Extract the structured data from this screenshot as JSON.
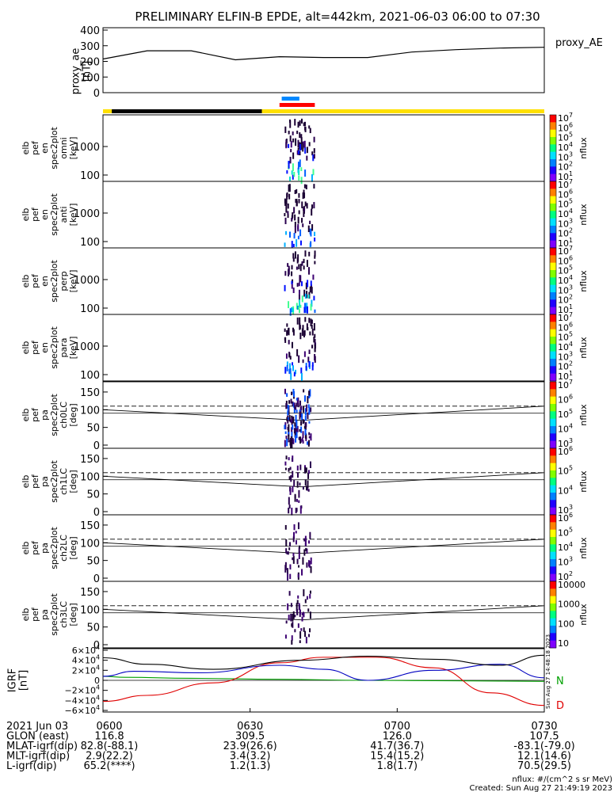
{
  "title": "PRELIMINARY ELFIN-B EPDE, alt=442km, 2021-06-03 06:00 to 07:30",
  "chart_data": [
    {
      "type": "line",
      "panel": "proxy_ae",
      "ylabel_lines": [
        "proxy_ae",
        "[nT]"
      ],
      "legend": "proxy_AE",
      "ylim": [
        0,
        400
      ],
      "yticks": [
        "400",
        "300",
        "200",
        "100",
        "0"
      ],
      "x": [
        0,
        0.1,
        0.2,
        0.3,
        0.4,
        0.5,
        0.6,
        0.7,
        0.8,
        0.9,
        1.0
      ],
      "values": [
        215,
        268,
        268,
        210,
        230,
        225,
        225,
        260,
        275,
        285,
        290
      ]
    },
    {
      "type": "heatmap",
      "panels": [
        {
          "name": "elb pef en spec2plot omni",
          "ylabel_lines": [
            "elb",
            "pef",
            "en",
            "spec2plot",
            "omni",
            "[keV]"
          ],
          "cbar": [
            "10^7",
            "10^6",
            "10^5",
            "10^4",
            "10^3",
            "10^2",
            "10^1"
          ],
          "cbar_label": "nflux",
          "yticks": [
            "1000",
            "100"
          ]
        },
        {
          "name": "elb pef en spec2plot anti",
          "ylabel_lines": [
            "elb",
            "pef",
            "en",
            "spec2plot",
            "anti",
            "[keV]"
          ],
          "cbar": [
            "10^7",
            "10^6",
            "10^5",
            "10^4",
            "10^3",
            "10^2",
            "10^1"
          ],
          "cbar_label": "nflux",
          "yticks": [
            "1000",
            "100"
          ]
        },
        {
          "name": "elb pef en spec2plot perp",
          "ylabel_lines": [
            "elb",
            "pef",
            "en",
            "spec2plot",
            "perp",
            "[keV]"
          ],
          "cbar": [
            "10^7",
            "10^6",
            "10^5",
            "10^4",
            "10^3",
            "10^2",
            "10^1"
          ],
          "cbar_label": "nflux",
          "yticks": [
            "1000",
            "100"
          ]
        },
        {
          "name": "elb pef en spec2plot para",
          "ylabel_lines": [
            "elb",
            "pef",
            "en",
            "spec2plot",
            "para",
            "[keV]"
          ],
          "cbar": [
            "10^7",
            "10^6",
            "10^5",
            "10^4",
            "10^3",
            "10^2",
            "10^1"
          ],
          "cbar_label": "nflux",
          "yticks": [
            "1000",
            "100"
          ]
        },
        {
          "name": "elb pef pa spec2plot ch0LC",
          "ylabel_lines": [
            "elb",
            "pef",
            "pa",
            "spec2plot",
            "ch0LC",
            "[deg]"
          ],
          "cbar": [
            "10^7",
            "10^6",
            "10^5",
            "10^4",
            "10^3"
          ],
          "cbar_label": "nflux",
          "yticks": [
            "150",
            "100",
            "50",
            "0"
          ]
        },
        {
          "name": "elb pef pa spec2plot ch1LC",
          "ylabel_lines": [
            "elb",
            "pef",
            "pa",
            "spec2plot",
            "ch1LC",
            "[deg]"
          ],
          "cbar": [
            "10^6",
            "10^5",
            "10^4",
            "10^3"
          ],
          "cbar_label": "nflux",
          "yticks": [
            "150",
            "100",
            "50",
            "0"
          ]
        },
        {
          "name": "elb pef pa spec2plot ch2LC",
          "ylabel_lines": [
            "elb",
            "pef",
            "pa",
            "spec2plot",
            "ch2LC",
            "[deg]"
          ],
          "cbar": [
            "10^6",
            "10^5",
            "10^4",
            "10^3",
            "10^2"
          ],
          "cbar_label": "nflux",
          "yticks": [
            "150",
            "100",
            "50",
            "0"
          ]
        },
        {
          "name": "elb pef pa spec2plot ch3LC",
          "ylabel_lines": [
            "elb",
            "pef",
            "pa",
            "spec2plot",
            "ch3LC",
            "[deg]"
          ],
          "cbar": [
            "10000",
            "1000",
            "100",
            "10"
          ],
          "cbar_label": "nflux",
          "yticks": [
            "150",
            "100",
            "50",
            "0"
          ]
        }
      ]
    },
    {
      "type": "line",
      "panel": "IGRF",
      "ylabel_lines": [
        "IGRF",
        "[nT]"
      ],
      "ylim": [
        -60000,
        60000
      ],
      "yticks": [
        "6×10^4",
        "4×10^4",
        "2×10^4",
        "0",
        "−2×10^4",
        "−4×10^4",
        "−6×10^4"
      ],
      "series": [
        {
          "name": "N",
          "color": "#00a000",
          "x": [
            0,
            0.05,
            0.2,
            0.4,
            0.6,
            0.8,
            1.0
          ],
          "values": [
            8000,
            6000,
            4000,
            2000,
            0,
            -1000,
            -2000
          ]
        },
        {
          "name": "D",
          "color": "#e00000",
          "x": [
            0,
            0.1,
            0.25,
            0.4,
            0.5,
            0.62,
            0.75,
            0.88,
            1.0
          ],
          "values": [
            -42000,
            -30000,
            -5000,
            35000,
            46000,
            46000,
            25000,
            -25000,
            -50000
          ]
        },
        {
          "name": "",
          "color": "#0000c0",
          "x": [
            0,
            0.07,
            0.22,
            0.4,
            0.5,
            0.6,
            0.75,
            0.9,
            1.0
          ],
          "values": [
            8000,
            18000,
            15000,
            30000,
            22000,
            0,
            20000,
            32000,
            5000
          ]
        },
        {
          "name": "",
          "color": "#000000",
          "x": [
            0,
            0.1,
            0.25,
            0.45,
            0.6,
            0.75,
            0.9,
            1.0
          ],
          "values": [
            45000,
            32000,
            22000,
            40000,
            48000,
            42000,
            30000,
            50000
          ]
        }
      ]
    }
  ],
  "time_bar": {
    "black_span": [
      0.02,
      0.36
    ],
    "yellow_span": [
      0.36,
      1.0
    ],
    "blue_span": [
      0.405,
      0.445
    ],
    "red_span": [
      0.4,
      0.48
    ]
  },
  "xaxis": {
    "row_labels": [
      "2021 Jun 03",
      "GLON (east)",
      "MLAT-igrf(dip)",
      "MLT-igrf(dip)",
      "L-igrf(dip)"
    ],
    "times": [
      "0600",
      "0630",
      "0700",
      "0730"
    ],
    "glon": [
      "116.8",
      "309.5",
      "126.0",
      "107.5"
    ],
    "mlat": [
      "82.8(-88.1)",
      "23.9(26.6)",
      "41.7(36.7)",
      "-83.1(-79.0)"
    ],
    "mlt": [
      "2.9(22.2)",
      "3.4(3.2)",
      "15.4(15.2)",
      "12.1(14.6)"
    ],
    "lval": [
      "65.2(****)",
      "1.2(1.3)",
      "1.8(1.7)",
      "70.5(29.5)"
    ]
  },
  "footer": {
    "units": "nflux: #/(cm^2 s sr MeV)",
    "created": "Created: Sun Aug 27 21:49:19 2023",
    "side_stamp": "Sun Aug 27 14:48:18 2023"
  }
}
